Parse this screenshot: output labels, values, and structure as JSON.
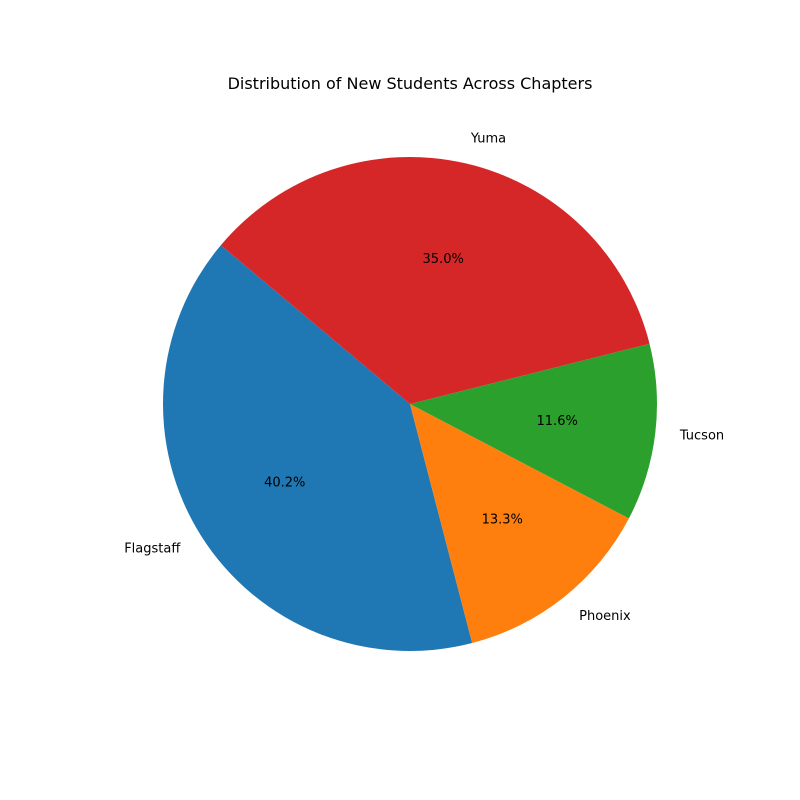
{
  "chart_data": {
    "type": "pie",
    "title": "Distribution of New Students Across Chapters",
    "categories": [
      "Flagstaff",
      "Phoenix",
      "Tucson",
      "Yuma"
    ],
    "values": [
      40.2,
      13.3,
      11.6,
      35.0
    ],
    "percent_labels": [
      "40.2%",
      "13.3%",
      "11.6%",
      "35.0%"
    ],
    "colors": [
      "#1f77b4",
      "#ff7f0e",
      "#2ca02c",
      "#d62728"
    ],
    "start_angle_deg": 140,
    "direction": "counterclockwise",
    "legend": "none"
  }
}
